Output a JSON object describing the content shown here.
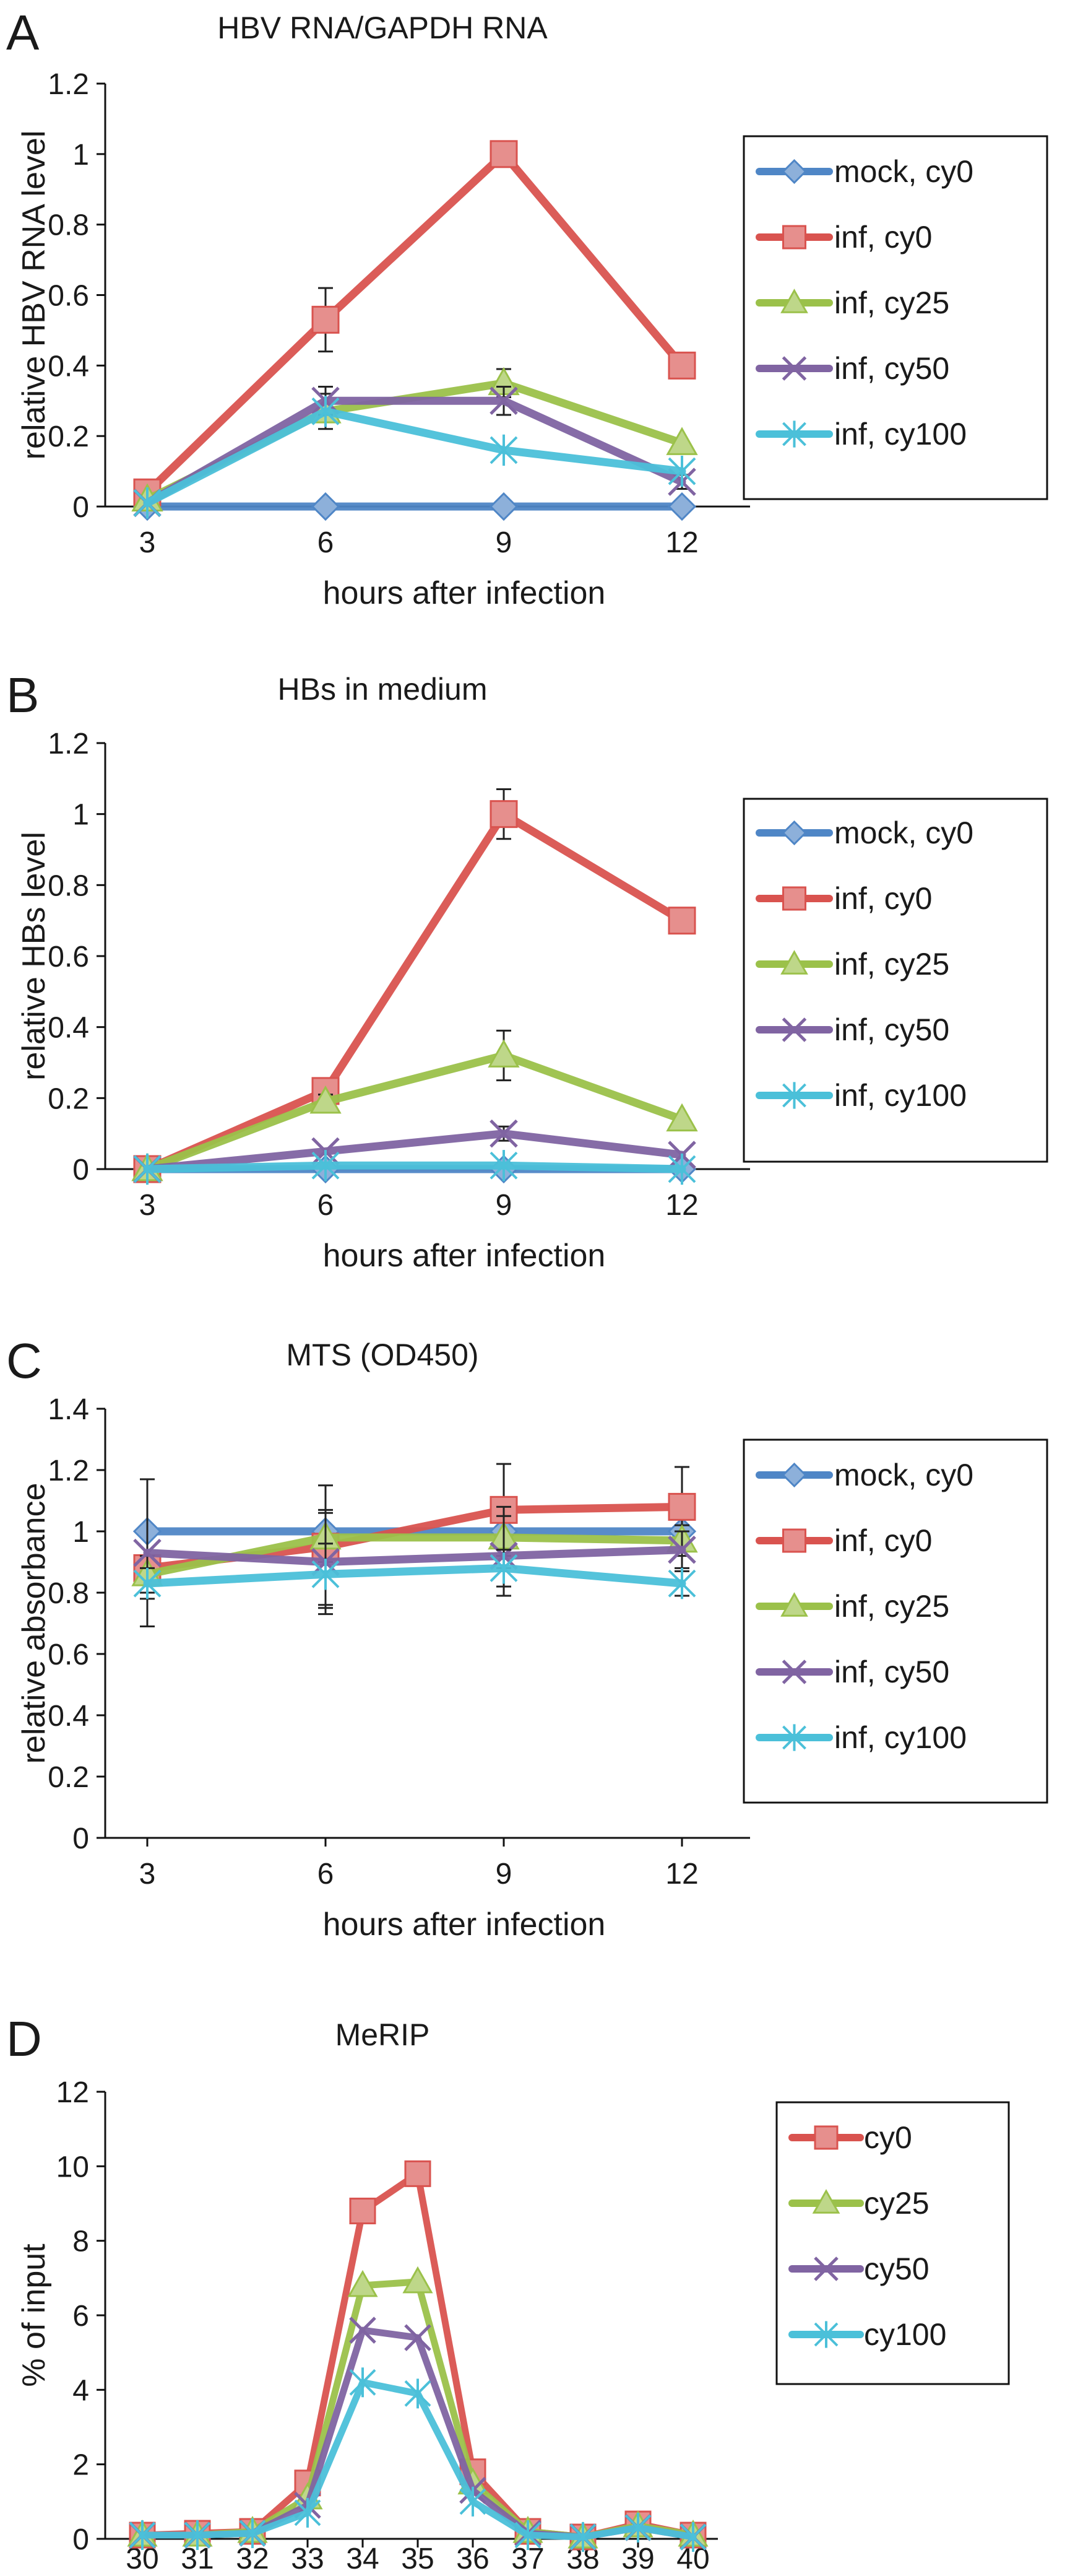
{
  "chart_data": [
    {
      "type": "line",
      "panel": "A",
      "title": "HBV RNA/GAPDH RNA",
      "xlabel": "hours after infection",
      "ylabel": "relative HBV RNA level",
      "categories": [
        "3",
        "6",
        "9",
        "12"
      ],
      "yticks": [
        "0",
        "0.2",
        "0.4",
        "0.6",
        "0.8",
        "1",
        "1.2"
      ],
      "ylim": [
        0,
        1.2
      ],
      "legend_position": "right",
      "series": [
        {
          "name": "mock, cy0",
          "marker": "diamond",
          "color": "#4f86c6",
          "values": [
            0,
            0,
            0,
            0
          ],
          "err": [
            0,
            0,
            0,
            0
          ]
        },
        {
          "name": "inf, cy0",
          "marker": "square",
          "color": "#d9534f",
          "values": [
            0.04,
            0.53,
            1.0,
            0.4
          ],
          "err": [
            0,
            0.09,
            0,
            0
          ]
        },
        {
          "name": "inf, cy25",
          "marker": "triangle",
          "color": "#9bc14a",
          "values": [
            0.02,
            0.27,
            0.35,
            0.18
          ],
          "err": [
            0,
            0.05,
            0.04,
            0
          ]
        },
        {
          "name": "inf, cy50",
          "marker": "x",
          "color": "#8064a2",
          "values": [
            0.01,
            0.3,
            0.3,
            0.07
          ],
          "err": [
            0,
            0.04,
            0.04,
            0.02
          ]
        },
        {
          "name": "inf, cy100",
          "marker": "star",
          "color": "#4bc0d9",
          "values": [
            0.01,
            0.27,
            0.16,
            0.1
          ],
          "err": [
            0,
            0,
            0,
            0
          ]
        }
      ]
    },
    {
      "type": "line",
      "panel": "B",
      "title": "HBs in medium",
      "xlabel": "hours after infection",
      "ylabel": "relative HBs level",
      "categories": [
        "3",
        "6",
        "9",
        "12"
      ],
      "yticks": [
        "0",
        "0.2",
        "0.4",
        "0.6",
        "0.8",
        "1",
        "1.2"
      ],
      "ylim": [
        0,
        1.2
      ],
      "legend_position": "right",
      "series": [
        {
          "name": "mock, cy0",
          "marker": "diamond",
          "color": "#4f86c6",
          "values": [
            0,
            0,
            0,
            0
          ],
          "err": [
            0,
            0,
            0,
            0
          ]
        },
        {
          "name": "inf, cy0",
          "marker": "square",
          "color": "#d9534f",
          "values": [
            0,
            0.22,
            1.0,
            0.7
          ],
          "err": [
            0,
            0.03,
            0.07,
            0
          ]
        },
        {
          "name": "inf, cy25",
          "marker": "triangle",
          "color": "#9bc14a",
          "values": [
            0,
            0.19,
            0.32,
            0.14
          ],
          "err": [
            0,
            0.02,
            0.07,
            0
          ]
        },
        {
          "name": "inf, cy50",
          "marker": "x",
          "color": "#8064a2",
          "values": [
            0,
            0.05,
            0.1,
            0.04
          ],
          "err": [
            0,
            0,
            0.02,
            0
          ]
        },
        {
          "name": "inf, cy100",
          "marker": "star",
          "color": "#4bc0d9",
          "values": [
            0,
            0.01,
            0.01,
            0
          ],
          "err": [
            0,
            0,
            0,
            0
          ]
        }
      ]
    },
    {
      "type": "line",
      "panel": "C",
      "title": "MTS (OD450)",
      "xlabel": "hours after infection",
      "ylabel": "relative absorbance",
      "categories": [
        "3",
        "6",
        "9",
        "12"
      ],
      "yticks": [
        "0",
        "0.2",
        "0.4",
        "0.6",
        "0.8",
        "1",
        "1.2",
        "1.4"
      ],
      "ylim": [
        0,
        1.4
      ],
      "legend_position": "right",
      "series": [
        {
          "name": "mock, cy0",
          "marker": "diamond",
          "color": "#4f86c6",
          "values": [
            1.0,
            1.0,
            1.0,
            1.0
          ],
          "err": [
            0,
            0,
            0,
            0
          ]
        },
        {
          "name": "inf, cy0",
          "marker": "square",
          "color": "#d9534f",
          "values": [
            0.88,
            0.95,
            1.07,
            1.08
          ],
          "err": [
            0.04,
            0.2,
            0.15,
            0.13
          ]
        },
        {
          "name": "inf, cy25",
          "marker": "triangle",
          "color": "#9bc14a",
          "values": [
            0.86,
            0.98,
            0.98,
            0.97
          ],
          "err": [
            0.06,
            0.08,
            0.1,
            0.05
          ]
        },
        {
          "name": "inf, cy50",
          "marker": "x",
          "color": "#8064a2",
          "values": [
            0.93,
            0.9,
            0.92,
            0.94
          ],
          "err": [
            0.24,
            0.17,
            0.13,
            0.06
          ]
        },
        {
          "name": "inf, cy100",
          "marker": "star",
          "color": "#4bc0d9",
          "values": [
            0.83,
            0.86,
            0.88,
            0.83
          ],
          "err": [
            0.05,
            0.1,
            0.06,
            0.04
          ]
        }
      ]
    },
    {
      "type": "line",
      "panel": "D",
      "title": "MeRIP",
      "xlabel": "",
      "ylabel": "% of input",
      "categories": [
        "30",
        "31",
        "32",
        "33",
        "34",
        "35",
        "36",
        "37",
        "38",
        "39",
        "40"
      ],
      "yticks": [
        "0",
        "2",
        "4",
        "6",
        "8",
        "10",
        "12"
      ],
      "ylim": [
        0,
        12
      ],
      "legend_position": "right",
      "series": [
        {
          "name": "cy0",
          "marker": "square",
          "color": "#d9534f",
          "values": [
            0.1,
            0.15,
            0.2,
            1.5,
            8.8,
            9.8,
            1.8,
            0.2,
            0.05,
            0.4,
            0.1
          ]
        },
        {
          "name": "cy25",
          "marker": "triangle",
          "color": "#9bc14a",
          "values": [
            0.1,
            0.1,
            0.2,
            1.1,
            6.8,
            6.9,
            1.5,
            0.2,
            0.05,
            0.35,
            0.1
          ]
        },
        {
          "name": "cy50",
          "marker": "x",
          "color": "#8064a2",
          "values": [
            0.1,
            0.1,
            0.15,
            0.9,
            5.6,
            5.4,
            1.3,
            0.15,
            0.05,
            0.3,
            0.05
          ]
        },
        {
          "name": "cy100",
          "marker": "star",
          "color": "#4bc0d9",
          "values": [
            0.1,
            0.1,
            0.15,
            0.7,
            4.2,
            3.9,
            1.0,
            0.1,
            0.05,
            0.3,
            0.05
          ]
        }
      ]
    }
  ]
}
